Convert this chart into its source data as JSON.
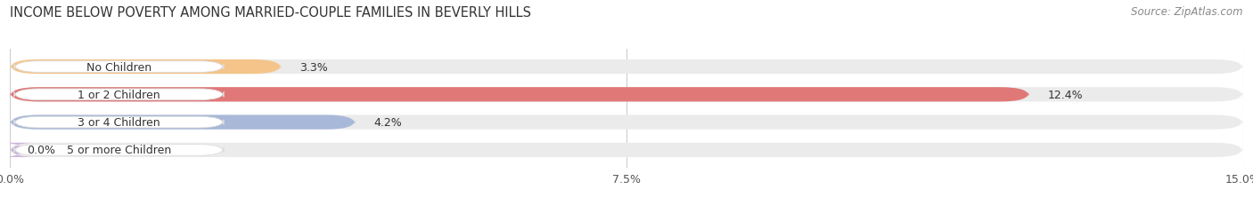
{
  "title": "INCOME BELOW POVERTY AMONG MARRIED-COUPLE FAMILIES IN BEVERLY HILLS",
  "source": "Source: ZipAtlas.com",
  "categories": [
    "No Children",
    "1 or 2 Children",
    "3 or 4 Children",
    "5 or more Children"
  ],
  "values": [
    3.3,
    12.4,
    4.2,
    0.0
  ],
  "bar_colors": [
    "#f5c48a",
    "#e07878",
    "#a8b8d8",
    "#ceb8d8"
  ],
  "xlim": [
    0,
    15.0
  ],
  "xticks": [
    0.0,
    7.5,
    15.0
  ],
  "xtick_labels": [
    "0.0%",
    "7.5%",
    "15.0%"
  ],
  "bar_height": 0.52,
  "background_color": "#ffffff",
  "bar_bg_color": "#ebebeb",
  "title_fontsize": 10.5,
  "label_fontsize": 9,
  "value_fontsize": 9,
  "source_fontsize": 8.5
}
